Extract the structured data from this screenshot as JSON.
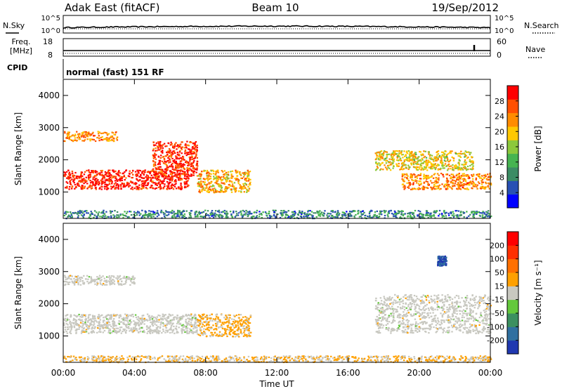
{
  "header": {
    "station": "Adak East (fitACF)",
    "beam": "Beam 10",
    "date": "19/Sep/2012"
  },
  "strip": {
    "nsky_label": "N.Sky",
    "nsearch_label": "N.Search",
    "noise_ticks": [
      "10^5",
      "10^0"
    ],
    "freq_label": "Freq.",
    "freq_unit": "[MHz]",
    "freq_ticks": [
      "18",
      "8"
    ],
    "nave_label": "Nave",
    "nave_ticks": [
      "60",
      "0"
    ],
    "cpid_label": "CPID",
    "cpid_text": "normal (fast) 151 RF"
  },
  "power_colorbar": {
    "label": "Power [dB]",
    "ticks": [
      "28",
      "24",
      "20",
      "16",
      "12",
      "8",
      "4"
    ],
    "colors": [
      "#0000ff",
      "#2850b4",
      "#3c8c64",
      "#46b450",
      "#8cc83c",
      "#ffc800",
      "#ff8c00",
      "#ff5000",
      "#ff0000"
    ]
  },
  "velocity_colorbar": {
    "label": "Velocity [m s⁻¹]",
    "ticks": [
      "200",
      "100",
      "50",
      "15",
      "-15",
      "-50",
      "-100",
      "-200"
    ],
    "colors": [
      "#2038b0",
      "#3070a0",
      "#3c9060",
      "#64c83c",
      "#c8c8c0",
      "#ffa000",
      "#ff7000",
      "#ff3000",
      "#ff0000"
    ]
  },
  "chart_data": [
    {
      "type": "heatmap",
      "panel": "power",
      "ylabel": "Slant Range [km]",
      "xlim": [
        "00:00",
        "00:00"
      ],
      "ylim": [
        180,
        4500
      ],
      "yticks": [
        1000,
        2000,
        3000,
        4000
      ],
      "units": "dB",
      "value_range": [
        0,
        30
      ],
      "regions": [
        {
          "start": "00:00",
          "end": "07:00",
          "range_km": [
            1100,
            1700
          ],
          "power_db": 28
        },
        {
          "start": "00:00",
          "end": "03:00",
          "range_km": [
            2600,
            2900
          ],
          "power_db": 22
        },
        {
          "start": "05:00",
          "end": "07:30",
          "range_km": [
            1500,
            2600
          ],
          "power_db": 27
        },
        {
          "start": "07:30",
          "end": "10:30",
          "range_km": [
            1000,
            1700
          ],
          "power_db": 20
        },
        {
          "start": "17:30",
          "end": "23:00",
          "range_km": [
            1700,
            2300
          ],
          "power_db": 18
        },
        {
          "start": "19:00",
          "end": "00:00",
          "range_km": [
            1100,
            1600
          ],
          "power_db": 22
        },
        {
          "start": "00:00",
          "end": "00:00",
          "range_km": [
            200,
            450
          ],
          "power_db": 8
        }
      ]
    },
    {
      "type": "heatmap",
      "panel": "velocity",
      "ylabel": "Slant Range [km]",
      "xlabel": "Time UT",
      "xlim": [
        "00:00",
        "00:00"
      ],
      "ylim": [
        180,
        4500
      ],
      "yticks": [
        1000,
        2000,
        3000,
        4000
      ],
      "xticks": [
        "00:00",
        "04:00",
        "08:00",
        "12:00",
        "16:00",
        "20:00",
        "00:00"
      ],
      "units": "m s-1",
      "value_range": [
        -250,
        250
      ],
      "regions": [
        {
          "start": "00:00",
          "end": "07:30",
          "range_km": [
            1100,
            1700
          ],
          "velocity_ms": 0
        },
        {
          "start": "00:00",
          "end": "04:00",
          "range_km": [
            2600,
            2900
          ],
          "velocity_ms": 0
        },
        {
          "start": "07:30",
          "end": "10:30",
          "range_km": [
            1000,
            1700
          ],
          "velocity_ms": 40
        },
        {
          "start": "17:30",
          "end": "00:00",
          "range_km": [
            1100,
            2300
          ],
          "velocity_ms": 0
        },
        {
          "start": "21:00",
          "end": "21:30",
          "range_km": [
            3200,
            3500
          ],
          "velocity_ms": -200
        },
        {
          "start": "00:00",
          "end": "00:00",
          "range_km": [
            200,
            400
          ],
          "velocity_ms": 30
        }
      ]
    }
  ]
}
